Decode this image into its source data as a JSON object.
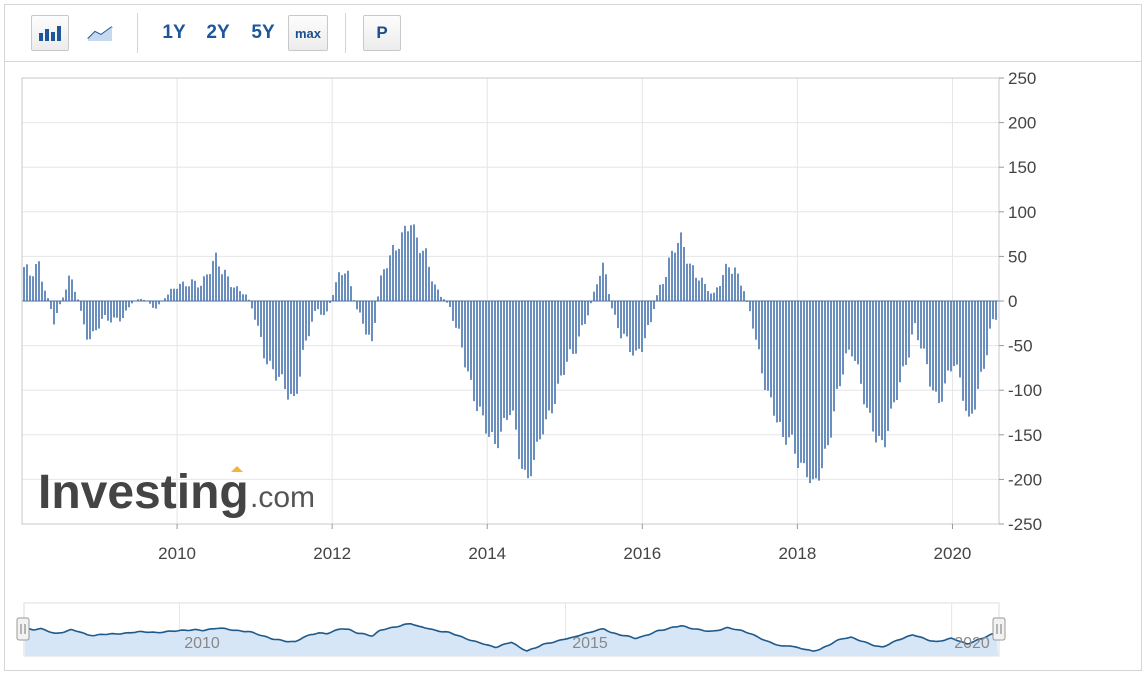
{
  "toolbar": {
    "icons": [
      "bar-chart-icon",
      "line-chart-icon"
    ],
    "ranges": [
      "1Y",
      "2Y",
      "5Y"
    ],
    "max_label": "max",
    "p_label": "P"
  },
  "watermark": {
    "brand": "Investing",
    "suffix": ".com"
  },
  "navigator": {
    "labels": [
      "2010",
      "2015",
      "2020"
    ]
  },
  "colors": {
    "bar": "#6a8fbf",
    "bar_edge": "#4a6f9f",
    "navigator_line": "#1f5a8a",
    "navigator_fill": "#d6e6f7",
    "accent": "#1d5799"
  },
  "chart_data": {
    "type": "bar",
    "title": "",
    "xlabel": "",
    "ylabel": "",
    "ylim": [
      -250,
      250
    ],
    "y_ticks": [
      250,
      200,
      150,
      100,
      50,
      0,
      -50,
      -100,
      -150,
      -200,
      -250
    ],
    "x_ticks": [
      "2010",
      "2012",
      "2014",
      "2016",
      "2018",
      "2020"
    ],
    "y_axis_position": "right",
    "grid": true,
    "legend": "none",
    "series": [
      {
        "values": [
          [
            2008.0,
            40
          ],
          [
            2008.1,
            25
          ],
          [
            2008.2,
            38
          ],
          [
            2008.3,
            10
          ],
          [
            2008.4,
            -20
          ],
          [
            2008.5,
            0
          ],
          [
            2008.6,
            25
          ],
          [
            2008.7,
            5
          ],
          [
            2008.8,
            -30
          ],
          [
            2008.9,
            -40
          ],
          [
            2009.0,
            -25
          ],
          [
            2009.2,
            -20
          ],
          [
            2009.3,
            -15
          ],
          [
            2009.4,
            -3
          ],
          [
            2009.5,
            3
          ],
          [
            2009.6,
            0
          ],
          [
            2009.7,
            -8
          ],
          [
            2009.8,
            0
          ],
          [
            2009.9,
            10
          ],
          [
            2010.0,
            15
          ],
          [
            2010.1,
            20
          ],
          [
            2010.2,
            25
          ],
          [
            2010.3,
            18
          ],
          [
            2010.4,
            30
          ],
          [
            2010.5,
            45
          ],
          [
            2010.6,
            35
          ],
          [
            2010.7,
            20
          ],
          [
            2010.8,
            10
          ],
          [
            2010.9,
            5
          ],
          [
            2011.0,
            -20
          ],
          [
            2011.1,
            -50
          ],
          [
            2011.2,
            -75
          ],
          [
            2011.3,
            -90
          ],
          [
            2011.4,
            -105
          ],
          [
            2011.5,
            -110
          ],
          [
            2011.6,
            -60
          ],
          [
            2011.7,
            -30
          ],
          [
            2011.8,
            -10
          ],
          [
            2011.9,
            -20
          ],
          [
            2012.0,
            10
          ],
          [
            2012.1,
            40
          ],
          [
            2012.2,
            25
          ],
          [
            2012.3,
            -10
          ],
          [
            2012.4,
            -25
          ],
          [
            2012.5,
            -45
          ],
          [
            2012.6,
            20
          ],
          [
            2012.7,
            40
          ],
          [
            2012.8,
            55
          ],
          [
            2012.9,
            80
          ],
          [
            2013.0,
            95
          ],
          [
            2013.1,
            60
          ],
          [
            2013.2,
            45
          ],
          [
            2013.3,
            20
          ],
          [
            2013.4,
            5
          ],
          [
            2013.5,
            -5
          ],
          [
            2013.7,
            -70
          ],
          [
            2013.8,
            -100
          ],
          [
            2013.9,
            -120
          ],
          [
            2014.0,
            -150
          ],
          [
            2014.1,
            -170
          ],
          [
            2014.2,
            -140
          ],
          [
            2014.3,
            -110
          ],
          [
            2014.4,
            -170
          ],
          [
            2014.5,
            -210
          ],
          [
            2014.6,
            -180
          ],
          [
            2014.7,
            -140
          ],
          [
            2014.8,
            -120
          ],
          [
            2014.9,
            -100
          ],
          [
            2015.0,
            -75
          ],
          [
            2015.1,
            -60
          ],
          [
            2015.2,
            -30
          ],
          [
            2015.3,
            -10
          ],
          [
            2015.4,
            20
          ],
          [
            2015.5,
            35
          ],
          [
            2015.6,
            -10
          ],
          [
            2015.7,
            -30
          ],
          [
            2015.8,
            -45
          ],
          [
            2015.9,
            -70
          ],
          [
            2016.0,
            -50
          ],
          [
            2016.1,
            -20
          ],
          [
            2016.2,
            15
          ],
          [
            2016.3,
            30
          ],
          [
            2016.4,
            55
          ],
          [
            2016.5,
            70
          ],
          [
            2016.6,
            45
          ],
          [
            2016.7,
            30
          ],
          [
            2016.8,
            15
          ],
          [
            2016.9,
            5
          ],
          [
            2017.0,
            25
          ],
          [
            2017.1,
            48
          ],
          [
            2017.2,
            30
          ],
          [
            2017.3,
            10
          ],
          [
            2017.4,
            -20
          ],
          [
            2017.5,
            -60
          ],
          [
            2017.6,
            -100
          ],
          [
            2017.7,
            -130
          ],
          [
            2017.8,
            -160
          ],
          [
            2017.9,
            -150
          ],
          [
            2018.0,
            -175
          ],
          [
            2018.1,
            -190
          ],
          [
            2018.2,
            -215
          ],
          [
            2018.3,
            -190
          ],
          [
            2018.4,
            -150
          ],
          [
            2018.5,
            -100
          ],
          [
            2018.6,
            -70
          ],
          [
            2018.7,
            -60
          ],
          [
            2018.8,
            -90
          ],
          [
            2018.9,
            -120
          ],
          [
            2019.0,
            -150
          ],
          [
            2019.1,
            -170
          ],
          [
            2019.2,
            -130
          ],
          [
            2019.3,
            -90
          ],
          [
            2019.4,
            -60
          ],
          [
            2019.5,
            -30
          ],
          [
            2019.6,
            -60
          ],
          [
            2019.7,
            -90
          ],
          [
            2019.8,
            -110
          ],
          [
            2019.9,
            -90
          ],
          [
            2020.0,
            -70
          ],
          [
            2020.1,
            -100
          ],
          [
            2020.2,
            -135
          ],
          [
            2020.3,
            -100
          ],
          [
            2020.4,
            -70
          ],
          [
            2020.5,
            -30
          ],
          [
            2020.6,
            -10
          ]
        ]
      }
    ]
  }
}
